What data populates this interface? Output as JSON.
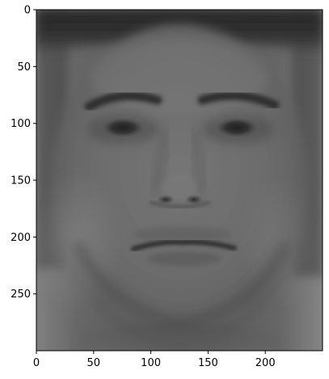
{
  "image": {
    "subject": "face-image",
    "colormap": "gray",
    "tone": {
      "background": "#5e5e5e",
      "dark_hair": "#262626",
      "skin": "#6e6e6e",
      "highlight": "#8a8a8a"
    }
  },
  "axes": {
    "x_ticks": [
      "0",
      "50",
      "100",
      "150",
      "200"
    ],
    "y_ticks": [
      "0",
      "50",
      "100",
      "150",
      "200",
      "250"
    ],
    "xlim": [
      0,
      250
    ],
    "ylim": [
      300,
      0
    ],
    "grid": false
  }
}
